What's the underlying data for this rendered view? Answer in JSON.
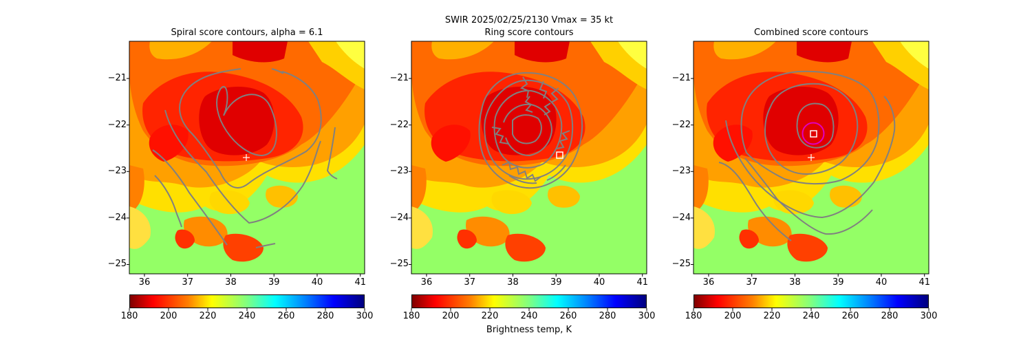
{
  "figure": {
    "suptitle_line1": "SWIR  2025/02/25/2130    Vmax = 35 kt",
    "colorbar_label": "Brightness temp, K"
  },
  "panels": [
    {
      "title": "Spiral score contours, alpha =  6.1"
    },
    {
      "title": "Ring score contours"
    },
    {
      "title": "Combined score contours"
    }
  ],
  "chart_data": {
    "type": "heatmap",
    "xlim": [
      35.65,
      41.1
    ],
    "ylim": [
      -25.2,
      -20.2
    ],
    "xticks": [
      36,
      37,
      38,
      39,
      40,
      41
    ],
    "yticks": [
      -21,
      -22,
      -23,
      -24,
      -25
    ],
    "colorbar": {
      "min": 180,
      "max": 300,
      "ticks": [
        180,
        200,
        220,
        240,
        260,
        280,
        300
      ],
      "label": "Brightness temp, K"
    },
    "markers": {
      "spiral_center_plus": [
        38.35,
        -22.7
      ],
      "ring_center_square": [
        39.05,
        -22.65
      ],
      "combined_center_square": [
        38.38,
        -22.2
      ],
      "combined_ring_radius_deg": 0.25
    },
    "colors": {
      "contour": "#808080",
      "marker": "#ffffff",
      "ring": "#e000c0"
    }
  }
}
